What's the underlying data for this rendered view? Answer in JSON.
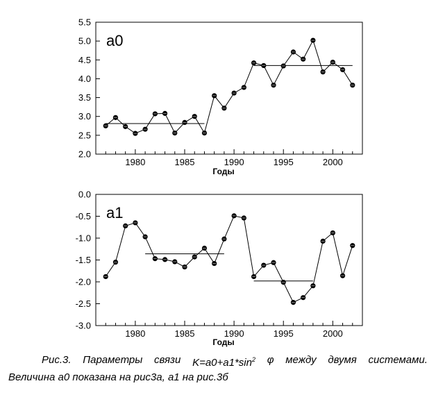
{
  "chart_data": [
    {
      "type": "line",
      "panel_label": "a0",
      "xlabel": "Годы",
      "xlim": [
        1976,
        2003
      ],
      "xticks": [
        1980,
        1985,
        1990,
        1995,
        2000
      ],
      "ylim": [
        2.0,
        5.5
      ],
      "yticks": [
        "2.0",
        "2.5",
        "3.0",
        "3.5",
        "4.0",
        "4.5",
        "5.0",
        "5.5"
      ],
      "x": [
        1977,
        1978,
        1979,
        1980,
        1981,
        1982,
        1983,
        1984,
        1985,
        1986,
        1987,
        1988,
        1989,
        1990,
        1991,
        1992,
        1993,
        1994,
        1995,
        1996,
        1997,
        1998,
        1999,
        2000,
        2001,
        2002
      ],
      "values": [
        2.75,
        2.97,
        2.73,
        2.55,
        2.66,
        3.07,
        3.08,
        2.56,
        2.84,
        3.0,
        2.56,
        3.55,
        3.22,
        3.62,
        3.77,
        4.42,
        4.35,
        3.83,
        4.34,
        4.71,
        4.52,
        5.02,
        4.18,
        4.44,
        4.24,
        3.83
      ],
      "segments": [
        {
          "x": [
            1977,
            1987
          ],
          "y": 2.81
        },
        {
          "x": [
            1992,
            2002
          ],
          "y": 4.35
        }
      ],
      "grid": false
    },
    {
      "type": "line",
      "panel_label": "a1",
      "xlabel": "Годы",
      "xlim": [
        1976,
        2003
      ],
      "xticks": [
        1980,
        1985,
        1990,
        1995,
        2000
      ],
      "ylim": [
        -3.0,
        0.0
      ],
      "yticks": [
        "-3.0",
        "-2.5",
        "-2.0",
        "-1.5",
        "-1.0",
        "-0.5",
        "0.0"
      ],
      "x": [
        1977,
        1978,
        1979,
        1980,
        1981,
        1982,
        1983,
        1984,
        1985,
        1986,
        1987,
        1988,
        1989,
        1990,
        1991,
        1992,
        1993,
        1994,
        1995,
        1996,
        1997,
        1998,
        1999,
        2000,
        2001,
        2002
      ],
      "values": [
        -1.88,
        -1.55,
        -0.72,
        -0.65,
        -0.97,
        -1.47,
        -1.49,
        -1.54,
        -1.66,
        -1.43,
        -1.23,
        -1.58,
        -1.02,
        -0.49,
        -0.54,
        -1.88,
        -1.62,
        -1.56,
        -2.01,
        -2.47,
        -2.36,
        -2.09,
        -1.07,
        -0.88,
        -1.86,
        -1.17
      ],
      "segments": [
        {
          "x": [
            1981,
            1989
          ],
          "y": -1.36
        },
        {
          "x": [
            1992,
            1998
          ],
          "y": -1.98
        }
      ],
      "grid": false
    }
  ],
  "caption": {
    "line1_words": [
      "Рис.3.",
      "Параметры",
      "связи",
      "K=a0+a1*sin",
      "φ",
      "между",
      "двумя",
      "системами."
    ],
    "sup": "2",
    "line2": "Величина a0 показана на рис3а, a1 на рис.3б"
  }
}
